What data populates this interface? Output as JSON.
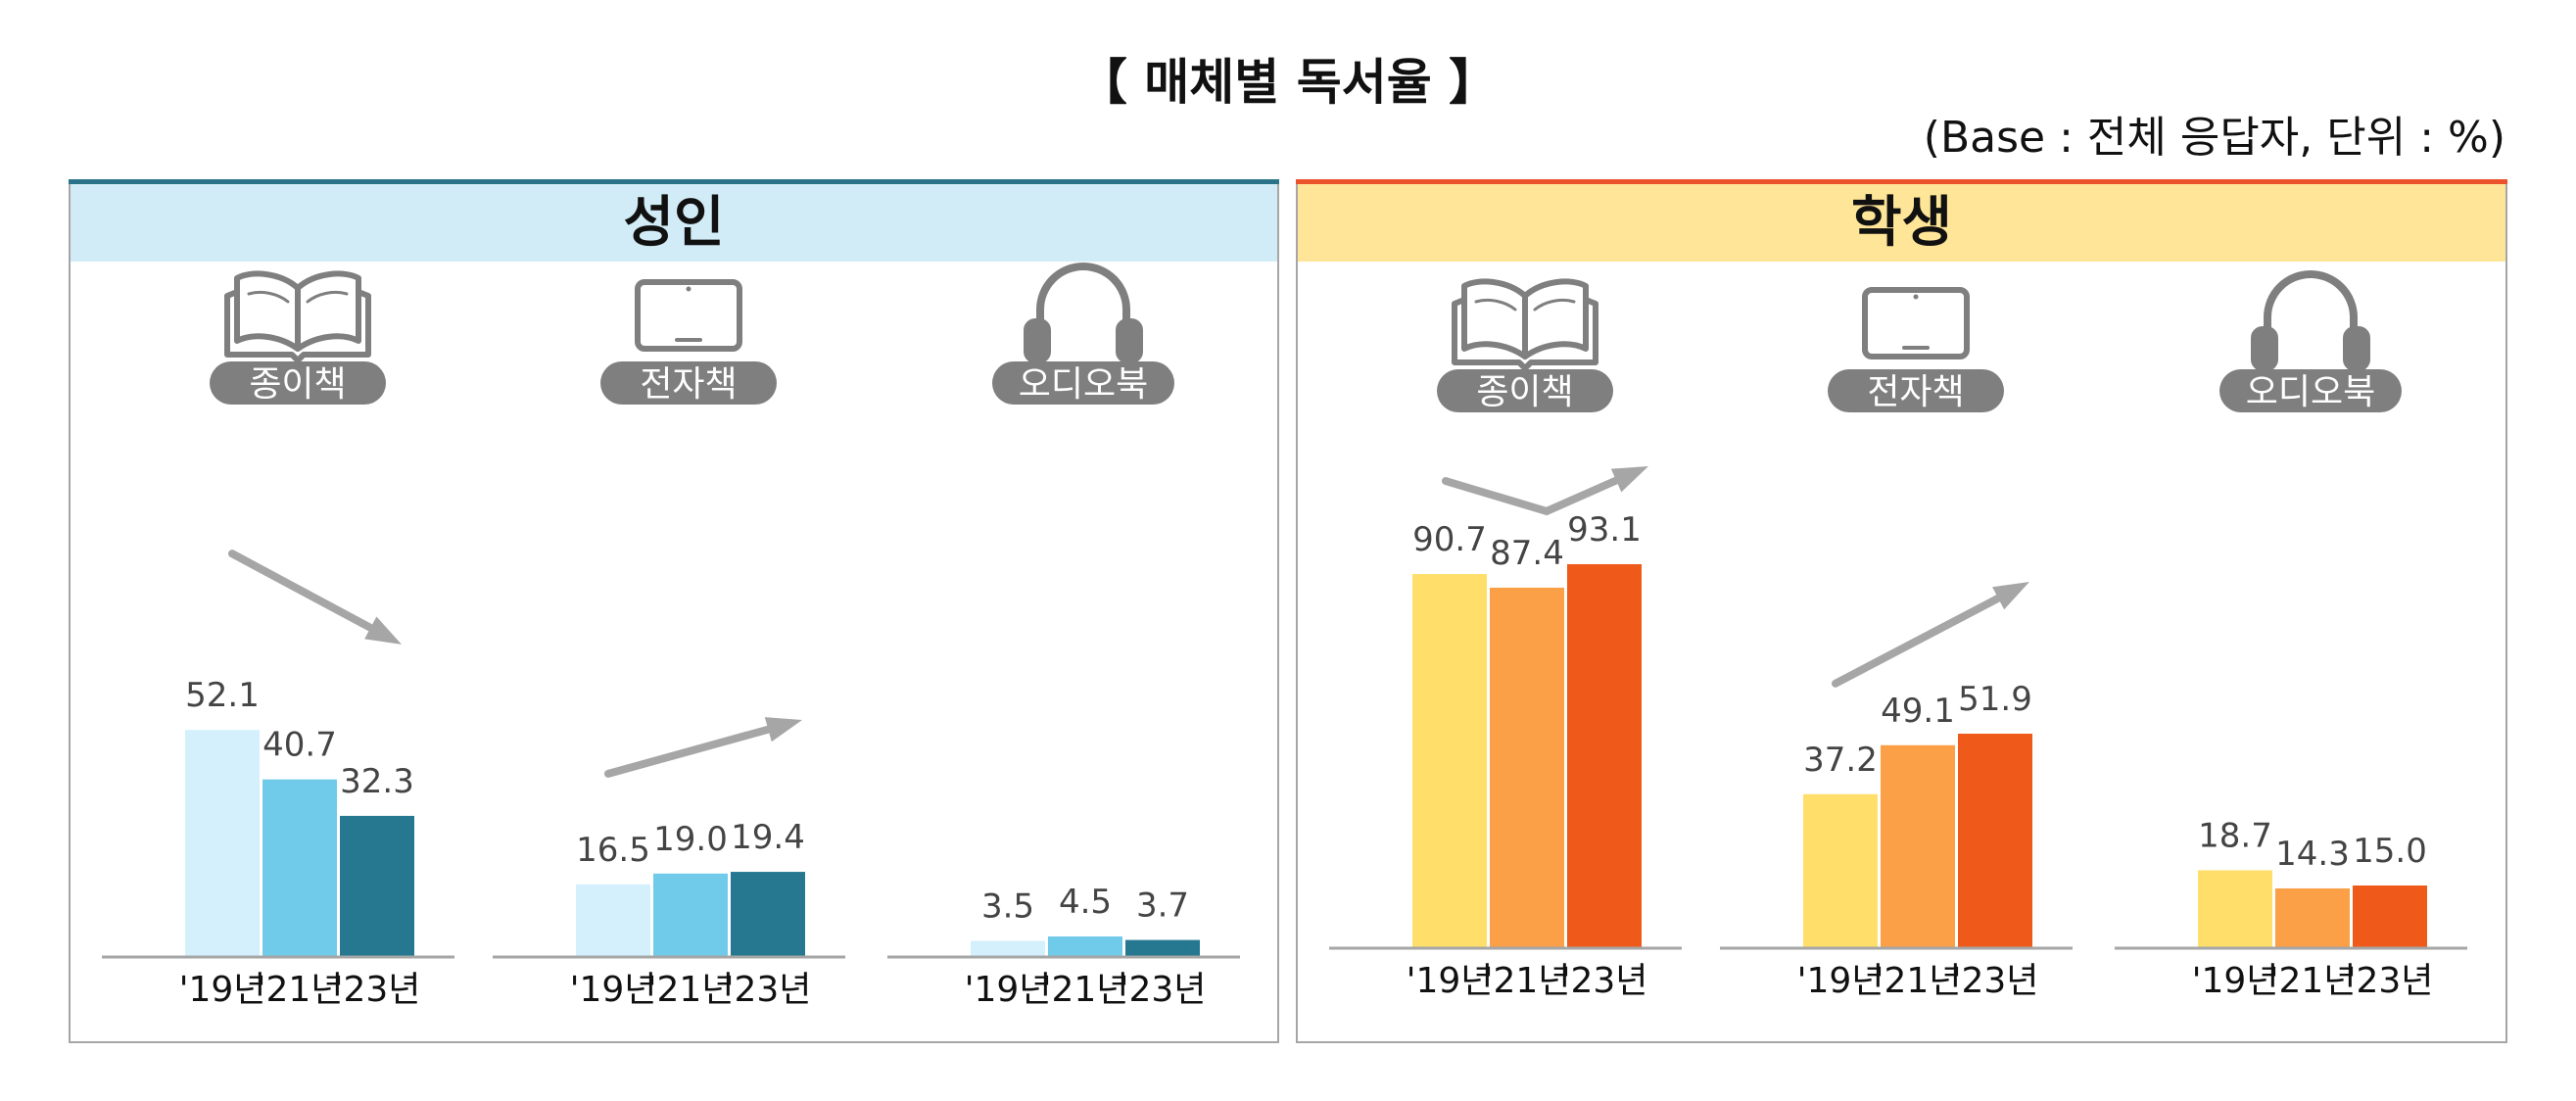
{
  "title": "【 매체별 독서율 】",
  "base_note": "(Base : 전체 응답자, 단위 : %)",
  "colors": {
    "adult_header_bg": "#d1ecf6",
    "adult_topline": "#2a7389",
    "student_header_bg": "#ffe597",
    "student_topline": "#e9522a",
    "arrow": "#a6a6a6",
    "pill": "#7f7f7f",
    "icon": "#7f7f7f"
  },
  "chart_data": [
    {
      "type": "bar",
      "panel": "성인",
      "categories": [
        "'19년",
        "'21년",
        "'23년"
      ],
      "series_colors": [
        "#d4f0fc",
        "#6fcbe9",
        "#267891"
      ],
      "groups": [
        {
          "name": "종이책",
          "icon": "open-book-icon",
          "values": [
            52.1,
            40.7,
            32.3
          ],
          "labels": [
            "52.1",
            "40.7",
            "32.3"
          ],
          "trend": "down"
        },
        {
          "name": "전자책",
          "icon": "tablet-icon",
          "values": [
            16.5,
            19.0,
            19.4
          ],
          "labels": [
            "16.5",
            "19.0",
            "19.4"
          ],
          "trend": "up"
        },
        {
          "name": "오디오북",
          "icon": "headphones-icon",
          "values": [
            3.5,
            4.5,
            3.7
          ],
          "labels": [
            "3.5",
            "4.5",
            "3.7"
          ],
          "trend": "none"
        }
      ]
    },
    {
      "type": "bar",
      "panel": "학생",
      "categories": [
        "'19년",
        "'21년",
        "'23년"
      ],
      "series_colors": [
        "#ffdf6a",
        "#fba047",
        "#ef5a1b"
      ],
      "groups": [
        {
          "name": "종이책",
          "icon": "open-book-icon",
          "values": [
            90.7,
            87.4,
            93.1
          ],
          "labels": [
            "90.7",
            "87.4",
            "93.1"
          ],
          "trend": "v"
        },
        {
          "name": "전자책",
          "icon": "tablet-icon",
          "values": [
            37.2,
            49.1,
            51.9
          ],
          "labels": [
            "37.2",
            "49.1",
            "51.9"
          ],
          "trend": "up"
        },
        {
          "name": "오디오북",
          "icon": "headphones-icon",
          "values": [
            18.7,
            14.3,
            15.0
          ],
          "labels": [
            "18.7",
            "14.3",
            "15.0"
          ],
          "trend": "none"
        }
      ]
    }
  ]
}
